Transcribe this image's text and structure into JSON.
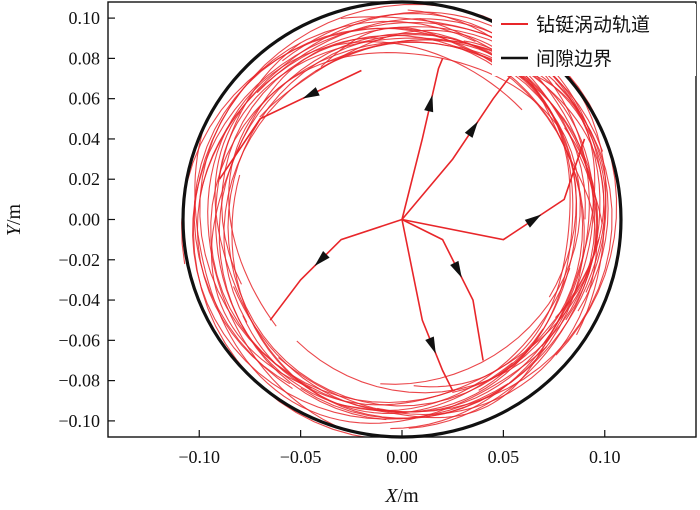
{
  "chart_data": {
    "type": "line",
    "xlabel_var": "X",
    "xlabel_unit": "/m",
    "ylabel_var": "Y",
    "ylabel_unit": "/m",
    "xlim": [
      -0.145,
      0.145
    ],
    "ylim": [
      -0.108,
      0.108
    ],
    "xticks": [
      -0.1,
      -0.05,
      0.0,
      0.05,
      0.1
    ],
    "xtick_labels": [
      "−0.10",
      "−0.05",
      "0.00",
      "0.05",
      "0.10"
    ],
    "yticks": [
      0.1,
      0.08,
      0.06,
      0.04,
      0.02,
      0.0,
      -0.02,
      -0.04,
      -0.06,
      -0.08,
      -0.1
    ],
    "ytick_labels": [
      "0.10",
      "0.08",
      "0.06",
      "0.04",
      "0.02",
      "0.00",
      "−0.02",
      "−0.04",
      "−0.06",
      "−0.08",
      "−0.10"
    ],
    "grid": false,
    "legend_placement": "top-right",
    "series": [
      {
        "name": "钻铤涡动轨道",
        "color": "#e8262a",
        "description_points": {
          "start": [
            0.0,
            0.0
          ],
          "paths": [
            [
              [
                0.0,
                0.0
              ],
              [
                0.01,
                0.04
              ],
              [
                0.018,
                0.075
              ],
              [
                0.02,
                0.08
              ]
            ],
            [
              [
                0.0,
                0.0
              ],
              [
                0.025,
                0.03
              ],
              [
                0.045,
                0.06
              ],
              [
                0.06,
                0.08
              ]
            ],
            [
              [
                0.0,
                0.0
              ],
              [
                -0.03,
                -0.01
              ],
              [
                -0.05,
                -0.03
              ],
              [
                -0.065,
                -0.05
              ]
            ],
            [
              [
                0.0,
                0.0
              ],
              [
                0.02,
                -0.01
              ],
              [
                0.035,
                -0.04
              ],
              [
                0.04,
                -0.07
              ]
            ],
            [
              [
                0.0,
                0.0
              ],
              [
                0.01,
                -0.05
              ],
              [
                0.02,
                -0.075
              ],
              [
                0.025,
                -0.085
              ]
            ],
            [
              [
                0.0,
                0.0
              ],
              [
                0.05,
                -0.01
              ],
              [
                0.08,
                0.01
              ],
              [
                0.09,
                0.04
              ]
            ],
            [
              [
                -0.02,
                0.074
              ],
              [
                -0.07,
                0.05
              ],
              [
                -0.09,
                0.02
              ]
            ]
          ],
          "orbit_ring_radius": [
            0.083,
            0.108
          ]
        }
      },
      {
        "name": "间隙边界",
        "color": "#111111",
        "circle_radius": 0.108,
        "center": [
          0.0,
          0.0
        ]
      }
    ]
  }
}
